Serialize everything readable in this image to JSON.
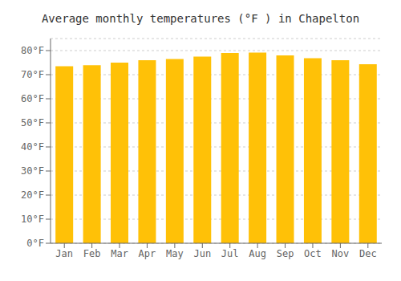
{
  "chart_data": {
    "type": "bar",
    "title": "Average monthly temperatures (°F ) in Chapelton",
    "categories": [
      "Jan",
      "Feb",
      "Mar",
      "Apr",
      "May",
      "Jun",
      "Jul",
      "Aug",
      "Sep",
      "Oct",
      "Nov",
      "Dec"
    ],
    "values": [
      73.5,
      73.9,
      75.0,
      76.0,
      76.5,
      77.5,
      79.0,
      79.2,
      78.0,
      76.8,
      76.0,
      74.3
    ],
    "color": "#FFC107",
    "ylim": [
      0,
      85
    ],
    "yticks": [
      {
        "value": 0,
        "label": "0°F"
      },
      {
        "value": 10,
        "label": "10°F"
      },
      {
        "value": 20,
        "label": "20°F"
      },
      {
        "value": 30,
        "label": "30°F"
      },
      {
        "value": 40,
        "label": "40°F"
      },
      {
        "value": 50,
        "label": "50°F"
      },
      {
        "value": 60,
        "label": "60°F"
      },
      {
        "value": 70,
        "label": "70°F"
      },
      {
        "value": 80,
        "label": "80°F"
      }
    ],
    "grid": true
  }
}
